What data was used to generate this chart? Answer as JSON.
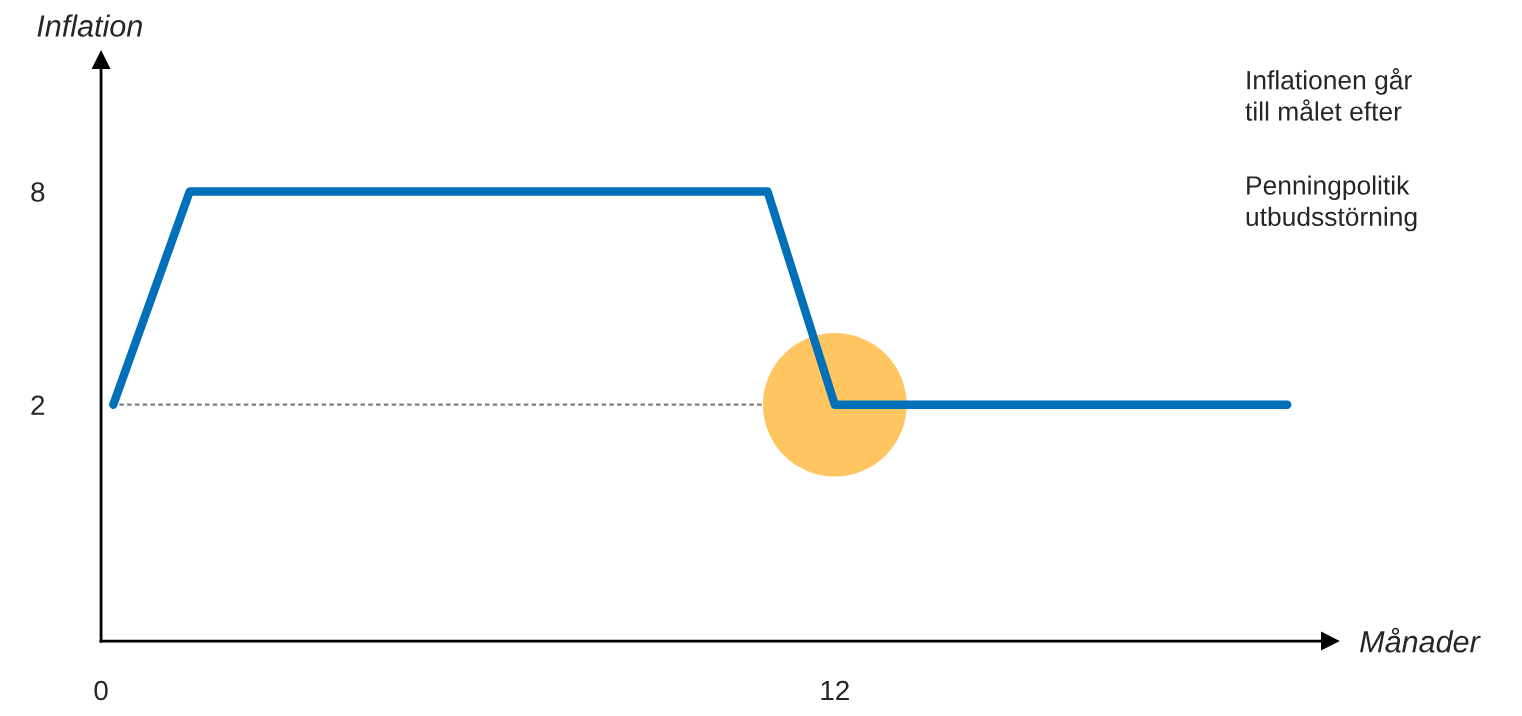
{
  "chart_data": {
    "type": "line",
    "xlabel": "Månader",
    "ylabel": "Inflation",
    "xlim": [
      0,
      20.1
    ],
    "ylim": [
      -4.65,
      11.7
    ],
    "xticks": [
      0,
      12
    ],
    "yticks": [
      2,
      8
    ],
    "grid": false,
    "legend": false,
    "series": [
      {
        "type": "line",
        "x": [
          0.3,
          12
        ],
        "values": [
          2,
          2
        ],
        "color": "#7f7f7f",
        "line_style": "dashed",
        "marker": "none"
      },
      {
        "type": "scatter",
        "x": [
          12
        ],
        "values": [
          2
        ],
        "color": "#ffc561",
        "marker": "circle"
      },
      {
        "x": [
          0.2,
          1.45,
          10.9,
          12,
          19.4
        ],
        "values": [
          2,
          8,
          8,
          2,
          2
        ],
        "color": "#0070b8",
        "line_style": "solid",
        "marker": "none"
      }
    ],
    "annotations": [
      "Inflationen går\ntill målet efter",
      "Penningpolitik\nutbudsstörning"
    ]
  }
}
